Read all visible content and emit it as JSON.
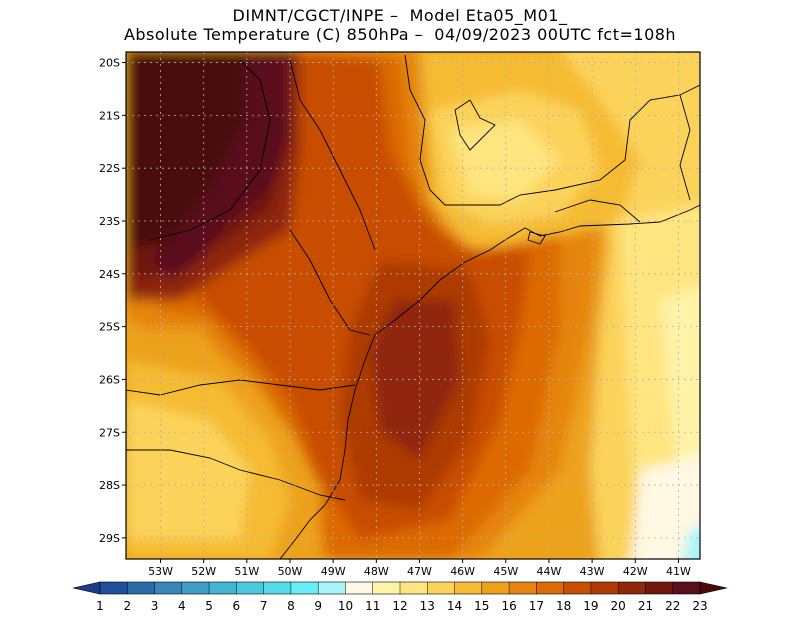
{
  "header": {
    "title_line1": "DIMNT/CGCT/INPE –  Model Eta05_M01_",
    "title_line2": "Absolute Temperature (C) 850hPa –  04/09/2023 00UTC fct=108h"
  },
  "map": {
    "lon_range": [
      -53.8,
      -40.5
    ],
    "lat_range": [
      -29.4,
      -19.8
    ],
    "lon_ticks": [
      {
        "value": -53,
        "label": "53W"
      },
      {
        "value": -52,
        "label": "52W"
      },
      {
        "value": -51,
        "label": "51W"
      },
      {
        "value": -50,
        "label": "50W"
      },
      {
        "value": -49,
        "label": "49W"
      },
      {
        "value": -48,
        "label": "48W"
      },
      {
        "value": -47,
        "label": "47W"
      },
      {
        "value": -46,
        "label": "46W"
      },
      {
        "value": -45,
        "label": "45W"
      },
      {
        "value": -44,
        "label": "44W"
      },
      {
        "value": -43,
        "label": "43W"
      },
      {
        "value": -42,
        "label": "42W"
      },
      {
        "value": -41,
        "label": "41W"
      }
    ],
    "lat_ticks": [
      {
        "value": -20,
        "label": "20S"
      },
      {
        "value": -21,
        "label": "21S"
      },
      {
        "value": -22,
        "label": "22S"
      },
      {
        "value": -23,
        "label": "23S"
      },
      {
        "value": -24,
        "label": "24S"
      },
      {
        "value": -25,
        "label": "25S"
      },
      {
        "value": -26,
        "label": "26S"
      },
      {
        "value": -27,
        "label": "27S"
      },
      {
        "value": -28,
        "label": "28S"
      },
      {
        "value": -29,
        "label": "29S"
      }
    ],
    "grid": "dotted"
  },
  "colorbar": {
    "labels": [
      "1",
      "2",
      "3",
      "4",
      "5",
      "6",
      "7",
      "8",
      "9",
      "10",
      "11",
      "12",
      "13",
      "14",
      "15",
      "16",
      "17",
      "18",
      "19",
      "20",
      "21",
      "22",
      "23"
    ],
    "colors": [
      "#1c3c8c",
      "#1f4e9e",
      "#2f6aa8",
      "#3a86b8",
      "#3f9dc6",
      "#43b4d2",
      "#4ac8e0",
      "#55dcea",
      "#67eef6",
      "#a9f4fb",
      "#fff8e2",
      "#fff3a8",
      "#ffe580",
      "#fbd35a",
      "#f5bb33",
      "#eda21a",
      "#e58510",
      "#dc6a06",
      "#c84e04",
      "#ad3a04",
      "#8f2708",
      "#72180c",
      "#5a0f1a",
      "#4a0a0a"
    ]
  }
}
